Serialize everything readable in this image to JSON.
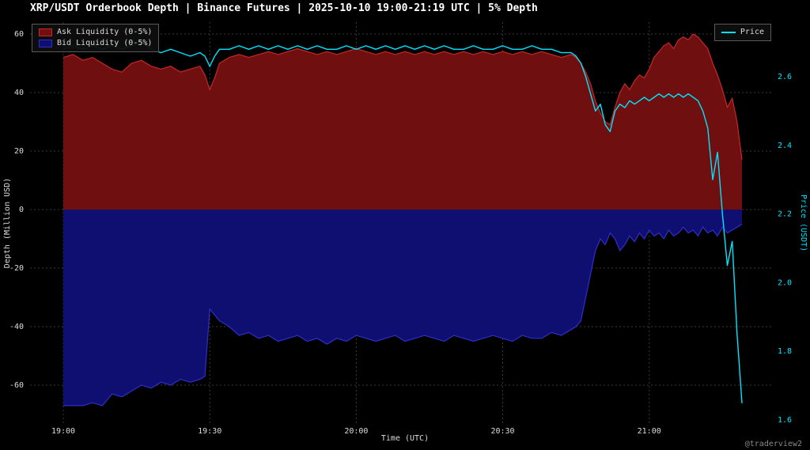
{
  "title": "XRP/USDT Orderbook Depth | Binance Futures | 2025-10-10 19:00-21:19 UTC | 5% Depth",
  "watermark": "@traderview2",
  "legend": {
    "ask": "Ask Liquidity (0-5%)",
    "bid": "Bid Liquidity (0-5%)",
    "price": "Price"
  },
  "axes": {
    "x_label": "Time (UTC)",
    "y_left_label": "Depth (Million USD)",
    "y_right_label": "Price (USDT)",
    "y_left_ticks": [
      60,
      40,
      20,
      0,
      -20,
      -40,
      -60
    ],
    "y_right_ticks": [
      "2.6",
      "2.4",
      "2.2",
      "2.0",
      "1.8",
      "1.6"
    ],
    "x_ticks": [
      {
        "m": 0,
        "label": "19:00"
      },
      {
        "m": 30,
        "label": "19:30"
      },
      {
        "m": 60,
        "label": "20:00"
      },
      {
        "m": 90,
        "label": "20:30"
      },
      {
        "m": 120,
        "label": "21:00"
      }
    ]
  },
  "colors": {
    "background": "#000000",
    "ask_fill": "#700f0f",
    "ask_edge": "#c62828",
    "bid_fill": "#0f0f72",
    "bid_edge": "#2e2ecc",
    "price": "#00e5ff",
    "grid": "#3a3a3a",
    "text": "#dddddd"
  },
  "chart_data": {
    "type": "area",
    "title": "XRP/USDT Orderbook Depth | Binance Futures | 2025-10-10 19:00-21:19 UTC | 5% Depth",
    "xlabel": "Time (UTC)",
    "ylabel_left": "Depth (Million USD)",
    "ylabel_right": "Price (USDT)",
    "x_unit": "minutes after 19:00 UTC",
    "ylim_left": [
      -70,
      63
    ],
    "ylim_right": [
      1.6,
      2.77
    ],
    "grid": true,
    "legend_position": "top-left and top-right",
    "x": [
      0,
      2,
      4,
      6,
      8,
      10,
      12,
      14,
      16,
      18,
      20,
      22,
      24,
      26,
      28,
      29,
      30,
      31,
      32,
      34,
      36,
      38,
      40,
      42,
      44,
      46,
      48,
      50,
      52,
      54,
      56,
      58,
      60,
      62,
      64,
      66,
      68,
      70,
      72,
      74,
      76,
      78,
      80,
      82,
      84,
      86,
      88,
      90,
      92,
      94,
      96,
      98,
      100,
      102,
      104,
      105,
      106,
      107,
      108,
      109,
      110,
      111,
      112,
      113,
      114,
      115,
      116,
      117,
      118,
      119,
      120,
      121,
      122,
      123,
      124,
      125,
      126,
      127,
      128,
      129,
      130,
      131,
      132,
      133,
      134,
      135,
      136,
      137,
      138,
      139
    ],
    "series": [
      {
        "name": "Ask Liquidity (0-5%)",
        "axis": "left",
        "units": "Million USD",
        "values": [
          52,
          53,
          51,
          52,
          50,
          48,
          47,
          50,
          51,
          49,
          48,
          49,
          47,
          48,
          49,
          46,
          41,
          45,
          50,
          52,
          53,
          52,
          53,
          54,
          53,
          54,
          55,
          54,
          53,
          54,
          53,
          54,
          55,
          54,
          53,
          54,
          53,
          54,
          53,
          54,
          53,
          54,
          53,
          54,
          53,
          54,
          53,
          54,
          53,
          54,
          53,
          54,
          53,
          52,
          53,
          52,
          50,
          47,
          43,
          37,
          33,
          30,
          29,
          35,
          40,
          43,
          41,
          44,
          46,
          45,
          48,
          52,
          54,
          56,
          57,
          55,
          58,
          59,
          58,
          60,
          59,
          57,
          55,
          50,
          46,
          41,
          35,
          38,
          30,
          17
        ]
      },
      {
        "name": "Bid Liquidity (0-5%)",
        "axis": "left",
        "units": "Million USD",
        "values": [
          -67,
          -67,
          -67,
          -66,
          -67,
          -63,
          -64,
          -62,
          -60,
          -61,
          -59,
          -60,
          -58,
          -59,
          -58,
          -57,
          -34,
          -36,
          -38,
          -40,
          -43,
          -42,
          -44,
          -43,
          -45,
          -44,
          -43,
          -45,
          -44,
          -46,
          -44,
          -45,
          -43,
          -44,
          -45,
          -44,
          -43,
          -45,
          -44,
          -43,
          -44,
          -45,
          -43,
          -44,
          -45,
          -44,
          -43,
          -44,
          -45,
          -43,
          -44,
          -44,
          -42,
          -43,
          -41,
          -40,
          -38,
          -30,
          -22,
          -14,
          -10,
          -12,
          -8,
          -10,
          -14,
          -12,
          -9,
          -11,
          -8,
          -10,
          -7,
          -9,
          -8,
          -10,
          -7,
          -9,
          -8,
          -6,
          -8,
          -7,
          -9,
          -6,
          -8,
          -7,
          -9,
          -6,
          -8,
          -7,
          -6,
          -5
        ]
      },
      {
        "name": "Price",
        "axis": "right",
        "units": "USDT",
        "values": [
          2.68,
          2.69,
          2.68,
          2.69,
          2.68,
          2.69,
          2.68,
          2.69,
          2.7,
          2.68,
          2.67,
          2.68,
          2.67,
          2.66,
          2.67,
          2.66,
          2.63,
          2.66,
          2.68,
          2.68,
          2.69,
          2.68,
          2.69,
          2.68,
          2.69,
          2.68,
          2.69,
          2.68,
          2.69,
          2.68,
          2.68,
          2.69,
          2.68,
          2.69,
          2.68,
          2.69,
          2.68,
          2.69,
          2.68,
          2.69,
          2.68,
          2.69,
          2.68,
          2.68,
          2.69,
          2.68,
          2.68,
          2.69,
          2.68,
          2.68,
          2.69,
          2.68,
          2.68,
          2.67,
          2.67,
          2.66,
          2.64,
          2.6,
          2.55,
          2.5,
          2.52,
          2.46,
          2.44,
          2.5,
          2.52,
          2.51,
          2.53,
          2.52,
          2.53,
          2.54,
          2.53,
          2.54,
          2.55,
          2.54,
          2.55,
          2.54,
          2.55,
          2.54,
          2.55,
          2.54,
          2.53,
          2.5,
          2.45,
          2.3,
          2.38,
          2.2,
          2.05,
          2.12,
          1.85,
          1.65
        ]
      }
    ]
  }
}
